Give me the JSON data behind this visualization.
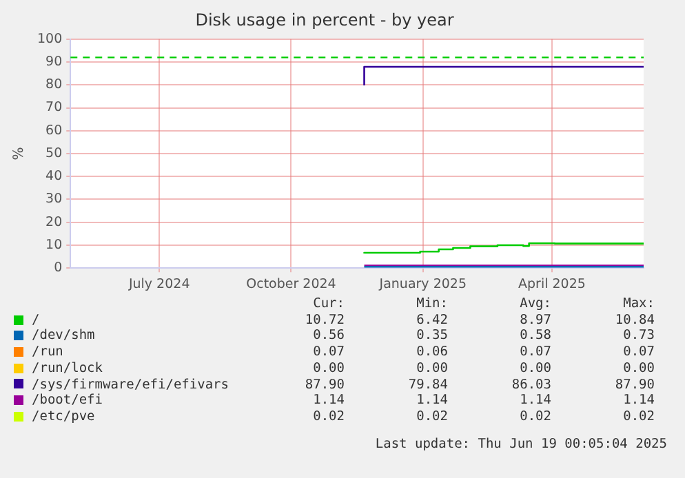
{
  "chart_data": {
    "type": "step",
    "title": "Disk usage in percent - by year",
    "ylabel": "%",
    "xlim": [
      "2024-05-15",
      "2025-06-19"
    ],
    "xticks": [
      {
        "value": "2024-07-16",
        "label": "July 2024"
      },
      {
        "value": "2024-10-16",
        "label": "October 2024"
      },
      {
        "value": "2025-01-16",
        "label": "January 2025"
      },
      {
        "value": "2025-04-16",
        "label": "April 2025"
      }
    ],
    "ylim": [
      0,
      100
    ],
    "yticks": [
      0,
      10,
      20,
      30,
      40,
      50,
      60,
      70,
      80,
      90,
      100
    ],
    "grid": true,
    "legend": "bottom",
    "marker": "none",
    "line_style": "solid",
    "series": [
      {
        "name": "/",
        "color": "#00cc00",
        "x": [
          "2024-12-06",
          "2025-01-14",
          "2025-01-27",
          "2025-02-06",
          "2025-02-18",
          "2025-03-09",
          "2025-03-27",
          "2025-03-31",
          "2025-04-18",
          "2025-06-19"
        ],
        "values": [
          6.4,
          6.7,
          7.2,
          8.2,
          8.8,
          9.5,
          10.0,
          9.6,
          10.8,
          10.7
        ]
      },
      {
        "name": "/dev/shm",
        "color": "#0066b3",
        "x": [
          "2024-12-06",
          "2025-06-19"
        ],
        "values": [
          0.6,
          0.6
        ]
      },
      {
        "name": "/run",
        "color": "#ff8000"
      },
      {
        "name": "/run/lock",
        "color": "#ffcc00"
      },
      {
        "name": "/sys/firmware/efi/efivars",
        "color": "#330099",
        "x": [
          "2024-12-06",
          "2025-01-19",
          "2025-06-19"
        ],
        "values": [
          79.8,
          87.9,
          87.9
        ]
      },
      {
        "name": "/boot/efi",
        "color": "#990099",
        "x": [
          "2024-12-06",
          "2025-06-19"
        ],
        "values": [
          1.1,
          1.1
        ]
      },
      {
        "name": "/etc/pve",
        "color": "#ccff00"
      }
    ],
    "ref_lines": [
      {
        "axis": "y",
        "value": 92,
        "color": "#00cc00",
        "line_style": "dashed"
      }
    ],
    "annotations": [
      "Cur:",
      "Min:",
      "Avg:",
      "Max:",
      "10.72",
      "6.42",
      "8.97",
      "10.84",
      "0.56",
      "0.35",
      "0.58",
      "0.73",
      "0.07",
      "0.06",
      "0.07",
      "0.07",
      "0.00",
      "0.00",
      "0.00",
      "0.00",
      "87.90",
      "79.84",
      "86.03",
      "87.90",
      "1.14",
      "1.14",
      "1.14",
      "1.14",
      "0.02",
      "0.02",
      "0.02",
      "0.02",
      "Last update: Thu Jun 19 00:05:04 2025"
    ]
  }
}
